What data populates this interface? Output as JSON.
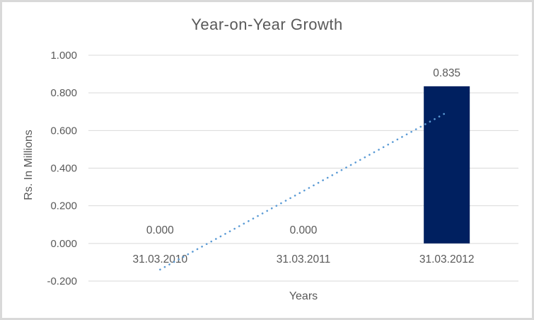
{
  "chart_data": {
    "type": "bar",
    "title": "Year-on-Year Growth",
    "xlabel": "Years",
    "ylabel": "Rs. In Millions",
    "categories": [
      "31.03.2010",
      "31.03.2011",
      "31.03.2012"
    ],
    "values": [
      0.0,
      0.0,
      0.835
    ],
    "data_labels": [
      "0.000",
      "0.000",
      "0.835"
    ],
    "ylim": [
      -0.2,
      1.0
    ],
    "ytick_step": 0.2,
    "ytick_labels": [
      "-0.200",
      "0.000",
      "0.200",
      "0.400",
      "0.600",
      "0.800",
      "1.000"
    ],
    "grid": true,
    "legend": "none",
    "bar_color": "#002060",
    "trendline": {
      "type": "linear",
      "style": "dotted",
      "color": "#5b9bd5",
      "start": {
        "category_index": 0,
        "value": -0.139
      },
      "end": {
        "category_index": 2,
        "value": 0.696
      }
    },
    "colors": {
      "text": "#595959",
      "gridline": "#d9d9d9",
      "axis_line": "#d9d9d9",
      "frame_border": "#d9d9d9",
      "background": "#ffffff"
    }
  }
}
